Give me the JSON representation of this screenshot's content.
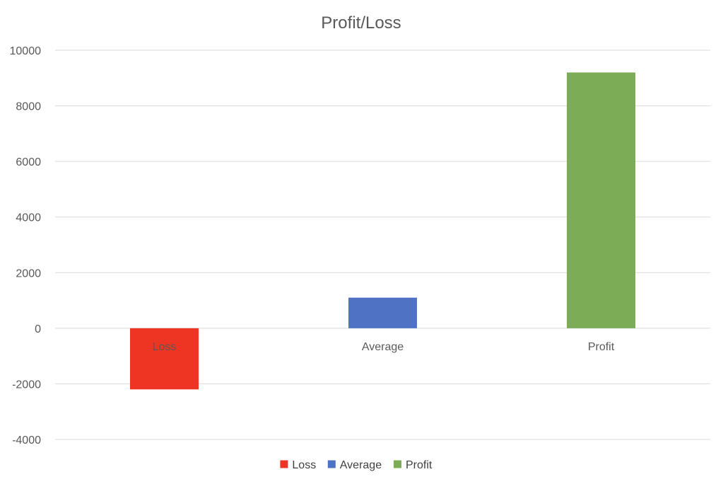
{
  "chart_data": {
    "type": "bar",
    "title": "Profit/Loss",
    "categories": [
      "Loss",
      "Average",
      "Profit"
    ],
    "values": [
      -2200,
      1100,
      9200
    ],
    "colors": [
      "#ee3524",
      "#4f72c4",
      "#7cac55"
    ],
    "ylim": [
      -4000,
      10000
    ],
    "yticks": [
      -4000,
      -2000,
      0,
      2000,
      4000,
      6000,
      8000,
      10000
    ],
    "grid": true,
    "legend": {
      "placement": "bottom",
      "entries": [
        {
          "label": "Loss",
          "color": "#ee3524"
        },
        {
          "label": "Average",
          "color": "#4f72c4"
        },
        {
          "label": "Profit",
          "color": "#7cac55"
        }
      ]
    }
  }
}
